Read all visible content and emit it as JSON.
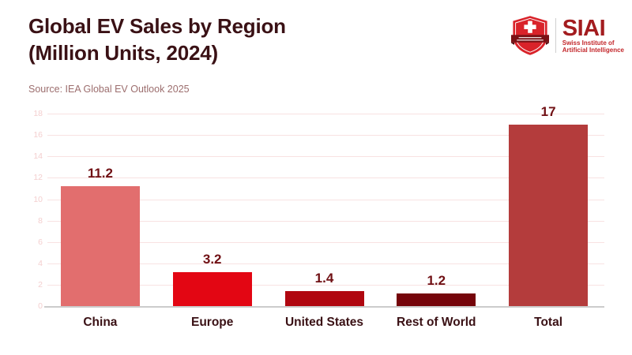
{
  "header": {
    "title_line1": "Global EV Sales by Region",
    "title_line2": "(Million Units, 2024)",
    "source": "Source: IEA Global EV Outlook 2025"
  },
  "logo": {
    "acronym": "SIAI",
    "subtitle_line1": "Swiss Institute of",
    "subtitle_line2": "Artificial Intelligence",
    "shield_icon": "swiss-shield-icon",
    "shield_red": "#d9232a",
    "ribbon_dark_red": "#7a1216",
    "acronym_color": "#a31c1f",
    "subtitle_color": "#c3272b"
  },
  "chart_data": {
    "type": "bar",
    "title": "Global EV Sales by Region (Million Units, 2024)",
    "subtitle_source": "Source: IEA Global EV Outlook 2025",
    "categories": [
      "China",
      "Europe",
      "United States",
      "Rest of World",
      "Total"
    ],
    "values": [
      11.2,
      3.2,
      1.4,
      1.2,
      17
    ],
    "value_labels": [
      "11.2",
      "3.2",
      "1.4",
      "1.2",
      "17"
    ],
    "bar_colors": [
      "#e26e6e",
      "#e30613",
      "#b00710",
      "#75040a",
      "#b43c3c"
    ],
    "xlabel": "",
    "ylabel": "",
    "ylim": [
      0,
      18.45
    ],
    "yticks": [
      0,
      2,
      4,
      6,
      8,
      10,
      12,
      14,
      16,
      18
    ],
    "grid": true,
    "legend": "none",
    "colors": {
      "gridline": "#f8e2e2",
      "tick_label": "#f4cfcf",
      "axis_line": "#cccccc",
      "value_label": "#701014",
      "category_label": "#3a1115",
      "title": "#3a1115",
      "source": "#9c6e6e"
    }
  }
}
